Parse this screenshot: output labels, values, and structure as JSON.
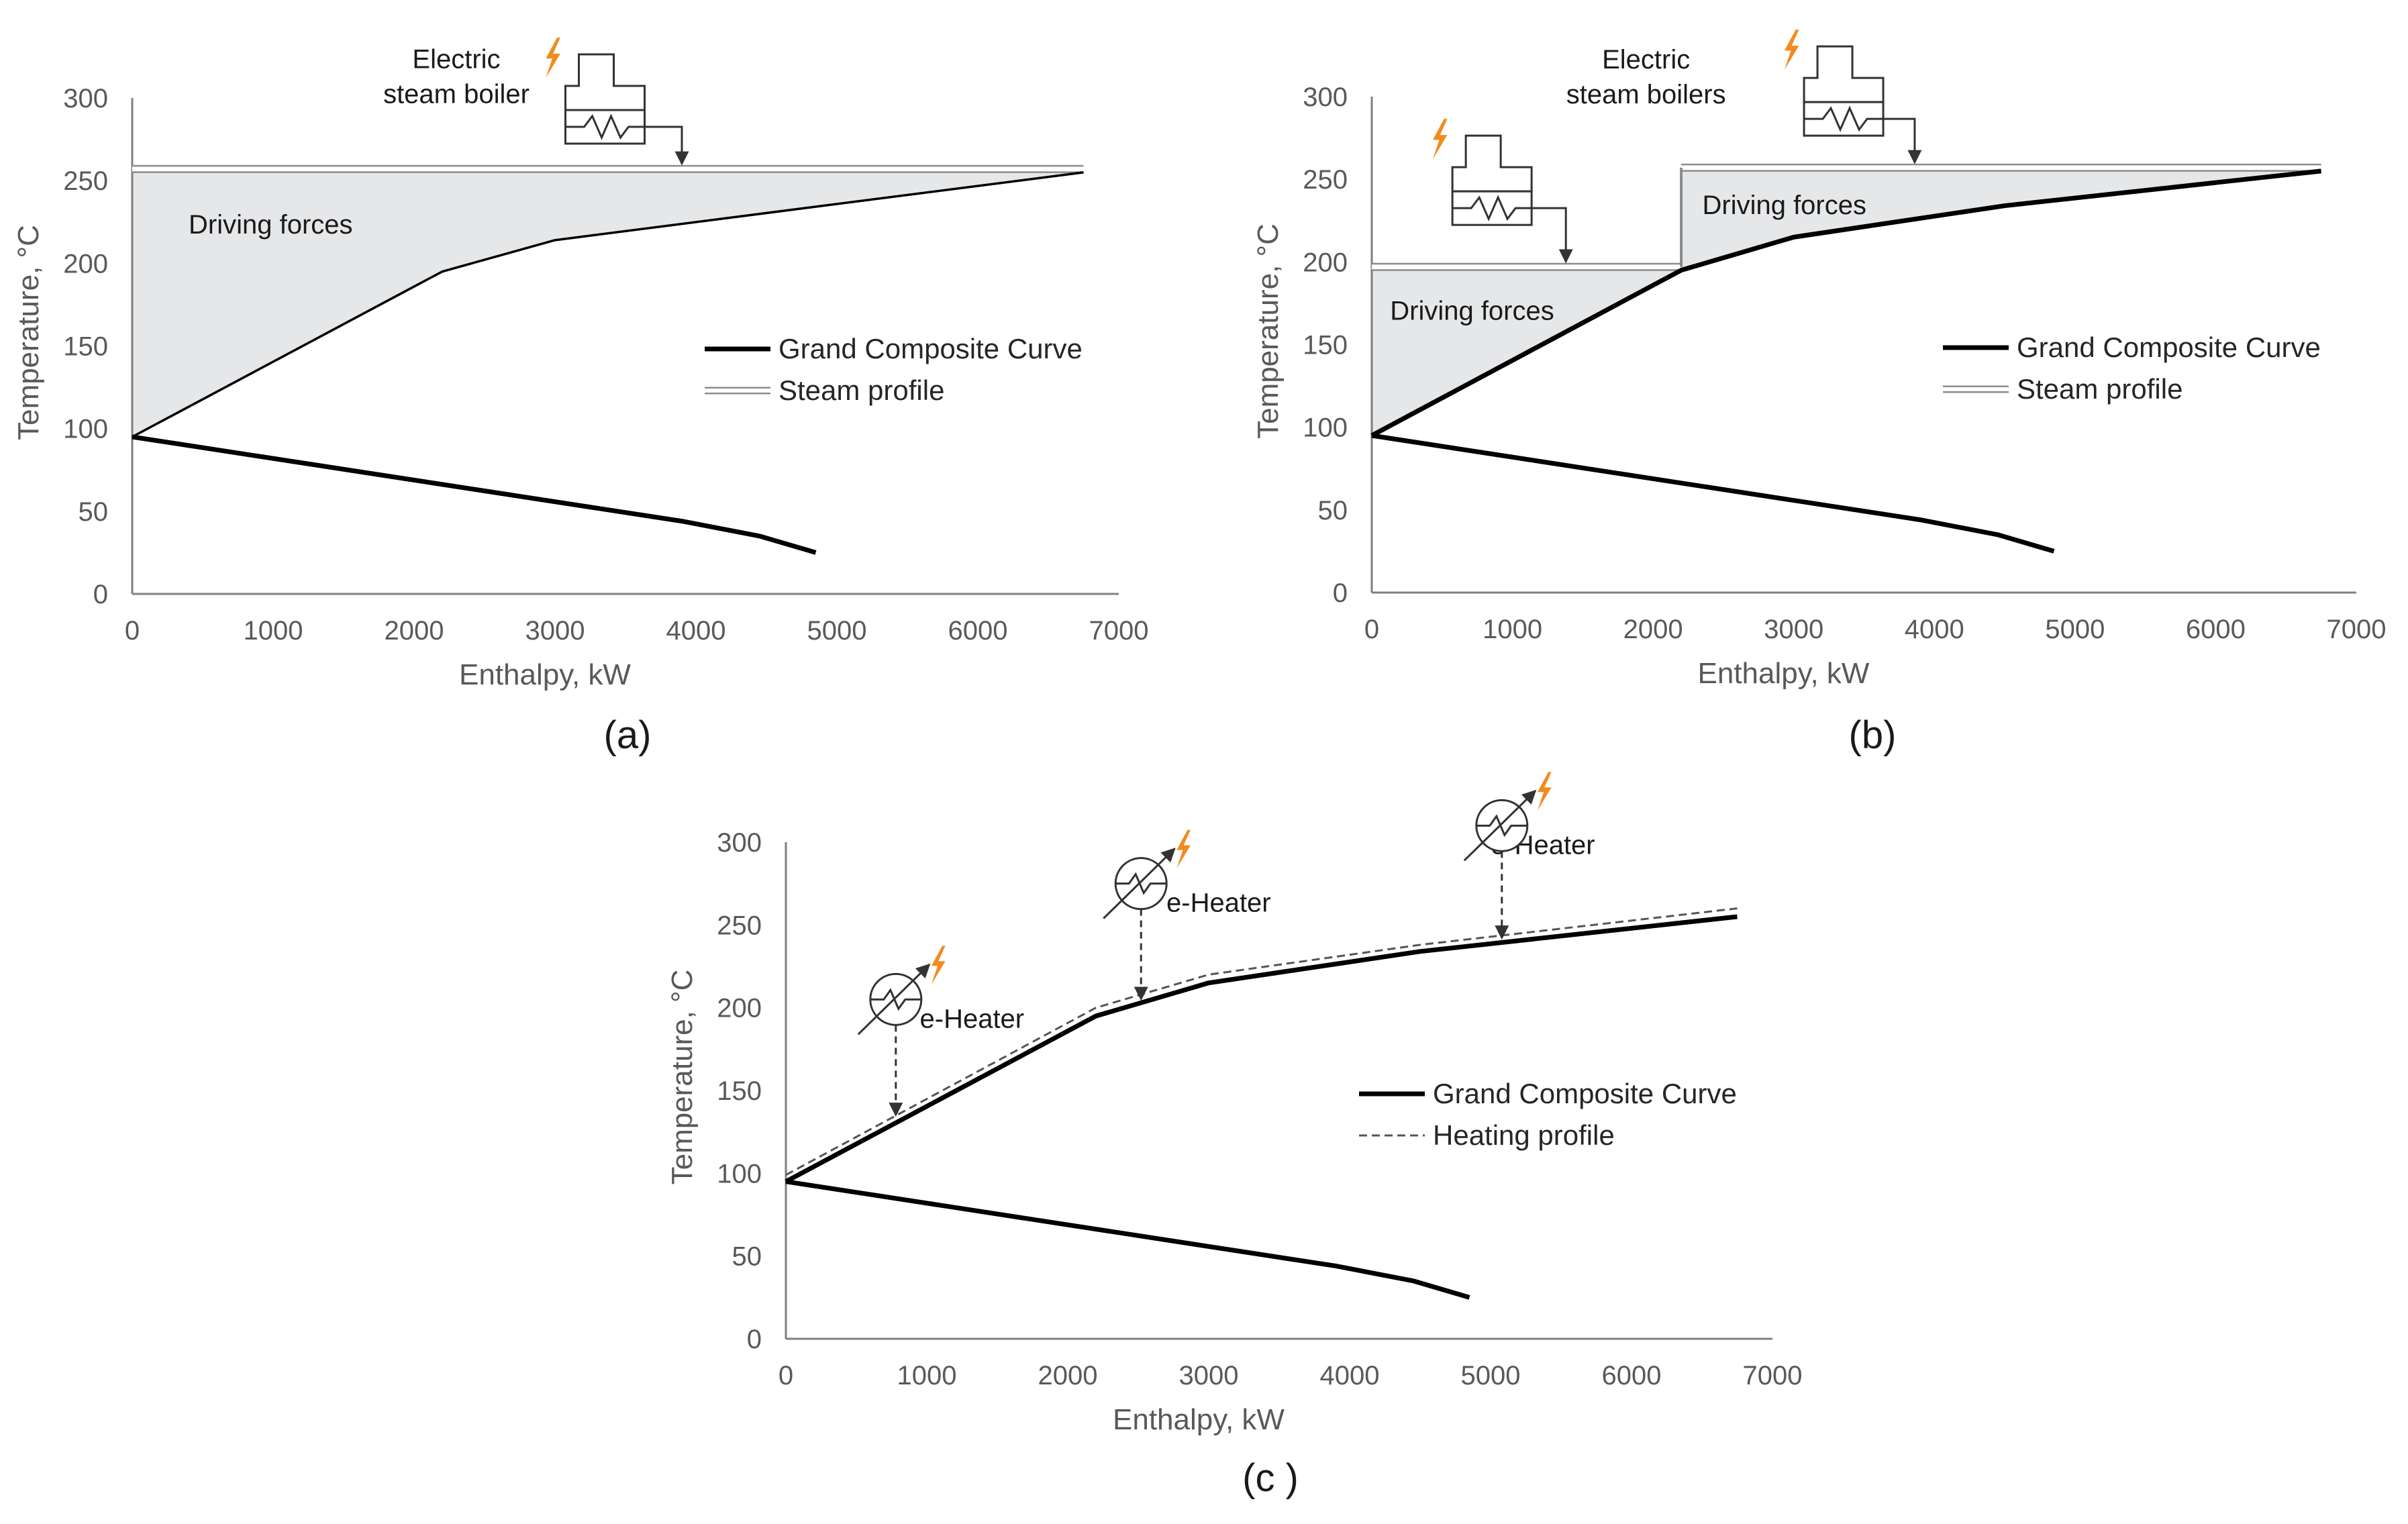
{
  "chart_data": [
    {
      "id": "a",
      "type": "line",
      "panel_label": "(a)",
      "xlabel": "Enthalpy, kW",
      "ylabel": "Temperature, °C",
      "xlim": [
        0,
        7000
      ],
      "ylim": [
        0,
        300
      ],
      "xticks": [
        0,
        1000,
        2000,
        3000,
        4000,
        5000,
        6000,
        7000
      ],
      "yticks": [
        0,
        50,
        100,
        150,
        200,
        250,
        300
      ],
      "legend": {
        "position": "right",
        "gcc_label": "Grand Composite Curve",
        "profile_label": "Steam profile",
        "profile_style": "double"
      },
      "gcc": {
        "upper": [
          [
            0,
            95
          ],
          [
            2200,
            195
          ],
          [
            3000,
            214
          ],
          [
            6750,
            255
          ]
        ],
        "lower": [
          [
            0,
            95
          ],
          [
            3900,
            44
          ],
          [
            4450,
            35
          ],
          [
            4850,
            25
          ]
        ],
        "upper_bold": false
      },
      "profile": {
        "style": "double",
        "segments": [
          {
            "x": [
              0,
              6750
            ],
            "y": 257
          }
        ]
      },
      "shade": [
        {
          "top": [
            [
              0,
              255
            ],
            [
              6750,
              255
            ]
          ],
          "bottom": [
            [
              0,
              95
            ],
            [
              2200,
              195
            ],
            [
              3000,
              214
            ],
            [
              6750,
              255
            ]
          ]
        }
      ],
      "annotations": [
        {
          "text": "Driving forces",
          "x": 400,
          "y": 218,
          "anchor": "start"
        },
        {
          "text": "Electric",
          "x": 2300,
          "y": 318,
          "anchor": "middle"
        },
        {
          "text": "steam boiler",
          "x": 2300,
          "y": 297,
          "anchor": "middle"
        }
      ],
      "devices": [
        {
          "kind": "boiler",
          "x": 3350,
          "y": 300,
          "target_x": 3900,
          "target_y": 260
        }
      ]
    },
    {
      "id": "b",
      "type": "line",
      "panel_label": "(b)",
      "xlabel": "Enthalpy, kW",
      "ylabel": "Temperature, °C",
      "xlim": [
        0,
        7000
      ],
      "ylim": [
        0,
        300
      ],
      "xticks": [
        0,
        1000,
        2000,
        3000,
        4000,
        5000,
        6000,
        7000
      ],
      "yticks": [
        0,
        50,
        100,
        150,
        200,
        250,
        300
      ],
      "legend": {
        "position": "right",
        "gcc_label": "Grand Composite Curve",
        "profile_label": "Steam profile",
        "profile_style": "double"
      },
      "gcc": {
        "upper": [
          [
            0,
            95
          ],
          [
            2200,
            195
          ],
          [
            3000,
            215
          ],
          [
            4500,
            234
          ],
          [
            6750,
            255
          ]
        ],
        "lower": [
          [
            0,
            95
          ],
          [
            3900,
            44
          ],
          [
            4450,
            35
          ],
          [
            4850,
            25
          ]
        ],
        "upper_bold": true
      },
      "profile": {
        "style": "double",
        "segments": [
          {
            "x": [
              0,
              2200
            ],
            "y": 197
          },
          {
            "x": [
              2200,
              6750
            ],
            "y": 257
          }
        ]
      },
      "shade": [
        {
          "top": [
            [
              0,
              195
            ],
            [
              2200,
              195
            ]
          ],
          "bottom": [
            [
              0,
              95
            ],
            [
              2200,
              195
            ]
          ]
        },
        {
          "top": [
            [
              2200,
              255
            ],
            [
              6750,
              255
            ]
          ],
          "bottom": [
            [
              2200,
              195
            ],
            [
              3000,
              215
            ],
            [
              4500,
              234
            ],
            [
              6750,
              255
            ]
          ]
        }
      ],
      "annotations": [
        {
          "text": "Driving forces",
          "x": 130,
          "y": 165,
          "anchor": "start"
        },
        {
          "text": "Driving forces",
          "x": 2350,
          "y": 229,
          "anchor": "start"
        },
        {
          "text": "Electric",
          "x": 1950,
          "y": 317,
          "anchor": "middle"
        },
        {
          "text": "steam boilers",
          "x": 1950,
          "y": 296,
          "anchor": "middle"
        }
      ],
      "devices": [
        {
          "kind": "boiler",
          "x": 850,
          "y": 250,
          "target_x": 1380,
          "target_y": 200
        },
        {
          "kind": "boiler",
          "x": 3350,
          "y": 304,
          "target_x": 3860,
          "target_y": 260
        }
      ]
    },
    {
      "id": "c",
      "type": "line",
      "panel_label": "(c )",
      "xlabel": "Enthalpy, kW",
      "ylabel": "Temperature, °C",
      "xlim": [
        0,
        7000
      ],
      "ylim": [
        0,
        300
      ],
      "xticks": [
        0,
        1000,
        2000,
        3000,
        4000,
        5000,
        6000,
        7000
      ],
      "yticks": [
        0,
        50,
        100,
        150,
        200,
        250,
        300
      ],
      "legend": {
        "position": "right",
        "gcc_label": "Grand Composite Curve",
        "profile_label": "Heating profile",
        "profile_style": "dashed"
      },
      "gcc": {
        "upper": [
          [
            0,
            95
          ],
          [
            2200,
            195
          ],
          [
            3000,
            215
          ],
          [
            4500,
            234
          ],
          [
            6750,
            255
          ]
        ],
        "lower": [
          [
            0,
            95
          ],
          [
            3900,
            44
          ],
          [
            4450,
            35
          ],
          [
            4850,
            25
          ]
        ],
        "upper_bold": true
      },
      "profile": {
        "style": "dashed",
        "points": [
          [
            0,
            99
          ],
          [
            2200,
            200
          ],
          [
            3000,
            220
          ],
          [
            4500,
            238
          ],
          [
            6750,
            260
          ]
        ]
      },
      "shade": [],
      "annotations": [
        {
          "text": "e-Heater",
          "x": 950,
          "y": 188,
          "anchor": "start"
        },
        {
          "text": "e-Heater",
          "x": 2700,
          "y": 258,
          "anchor": "start"
        },
        {
          "text": "e-Heater",
          "x": 5000,
          "y": 293,
          "anchor": "start"
        }
      ],
      "devices": [
        {
          "kind": "heater",
          "x": 780,
          "y": 205,
          "target_x": 780,
          "target_y": 135
        },
        {
          "kind": "heater",
          "x": 2520,
          "y": 275,
          "target_x": 2520,
          "target_y": 205
        },
        {
          "kind": "heater",
          "x": 5080,
          "y": 310,
          "target_x": 5080,
          "target_y": 242
        }
      ]
    }
  ],
  "colors": {
    "gcc": "#000000",
    "axis": "#7f7f7f",
    "shade": "#e6e7e9",
    "bolt": "#f28b1e",
    "profile": "#8c8c8c"
  }
}
